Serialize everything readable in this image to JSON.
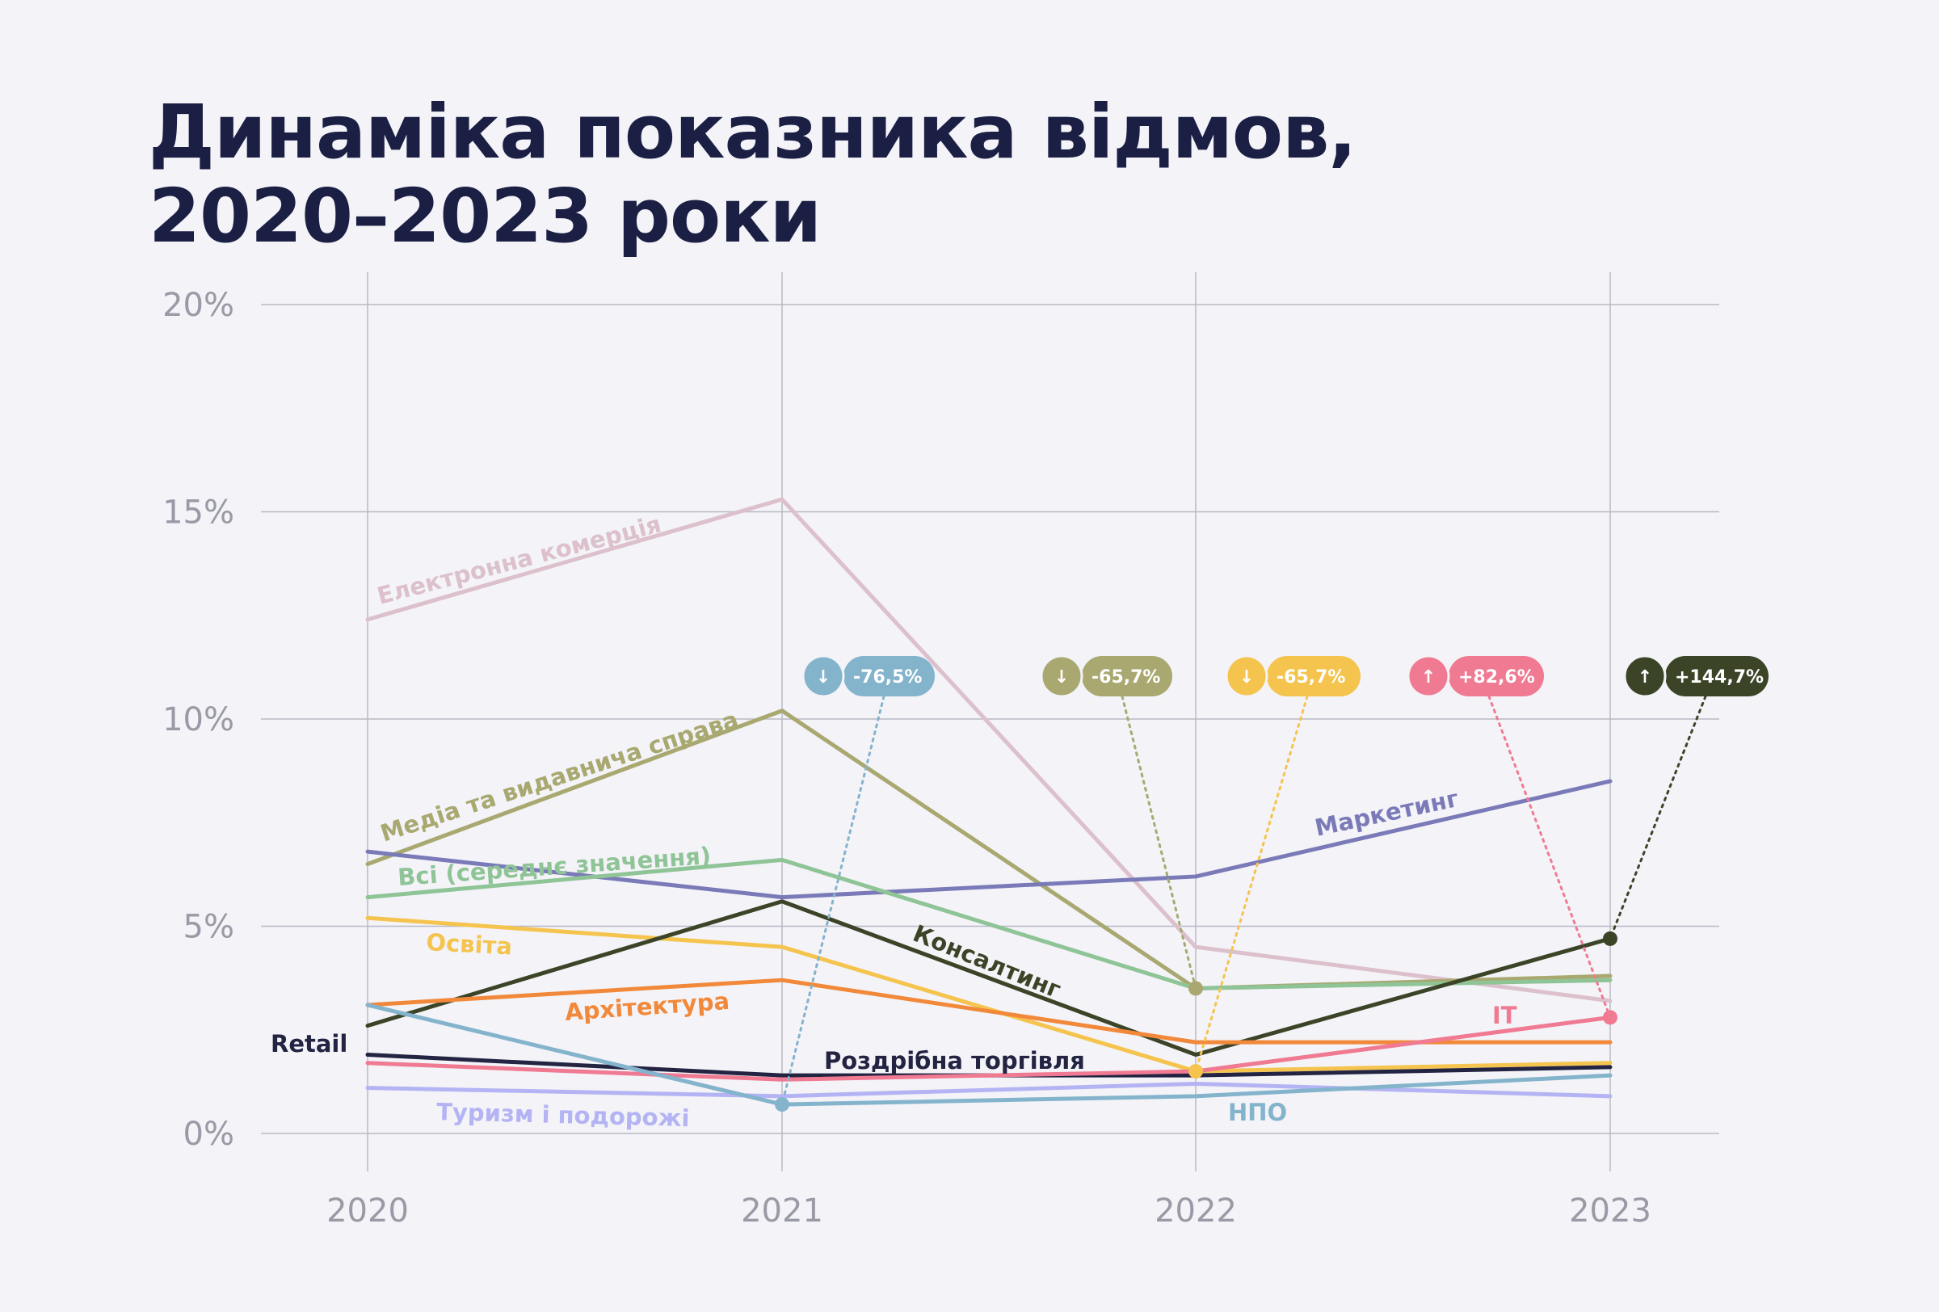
{
  "title": {
    "line1": "Динаміка показника відмов,",
    "line2": "2020–2023 роки"
  },
  "chart_data": {
    "type": "line",
    "title": "Динаміка показника відмов, 2020–2023 роки",
    "xlabel": "",
    "ylabel": "",
    "categories": [
      "2020",
      "2021",
      "2022",
      "2023"
    ],
    "y_ticks": [
      "0%",
      "5%",
      "10%",
      "15%",
      "20%"
    ],
    "ylim": [
      0,
      20
    ],
    "grid": true,
    "series": [
      {
        "name": "Електронна комерція",
        "color": "#dcc0cc",
        "values": [
          12.4,
          15.3,
          4.5,
          3.2
        ]
      },
      {
        "name": "Медіа та видавнича справа",
        "color": "#a8a870",
        "values": [
          6.5,
          10.2,
          3.5,
          3.8
        ]
      },
      {
        "name": "Маркетинг",
        "color": "#7a7ab8",
        "values": [
          6.8,
          5.7,
          6.2,
          8.5
        ]
      },
      {
        "name": "Всі (середнє значення)",
        "color": "#8fc497",
        "values": [
          5.7,
          6.6,
          3.5,
          3.7
        ]
      },
      {
        "name": "Освіта",
        "color": "#f5c44e",
        "values": [
          5.2,
          4.5,
          1.5,
          1.7
        ]
      },
      {
        "name": "Консалтинг",
        "color": "#3c4428",
        "values": [
          2.6,
          5.6,
          1.9,
          4.7
        ]
      },
      {
        "name": "Архітектура",
        "color": "#f2893a",
        "values": [
          3.1,
          3.7,
          2.2,
          2.2
        ]
      },
      {
        "name": "Retail",
        "color": "#232342",
        "values": [
          1.9,
          1.4,
          1.4,
          1.6
        ]
      },
      {
        "name": "IT",
        "color": "#f07a92",
        "values": [
          1.7,
          1.3,
          1.5,
          2.8
        ]
      },
      {
        "name": "Туризм і подорожі",
        "color": "#b4b4f4",
        "values": [
          1.1,
          0.9,
          1.2,
          0.9
        ]
      },
      {
        "name": "НПО",
        "color": "#84b3cc",
        "values": [
          3.1,
          0.7,
          0.9,
          1.4
        ]
      }
    ],
    "labels": [
      {
        "text": "Електронна комерція",
        "series": 0
      },
      {
        "text": "Медіа та видавнича справа",
        "series": 1
      },
      {
        "text": "Маркетинг",
        "series": 2
      },
      {
        "text": "Всі (середнє значення)",
        "series": 3
      },
      {
        "text": "Освіта",
        "series": 4
      },
      {
        "text": "Консалтинг",
        "series": 5
      },
      {
        "text": "Архітектура",
        "series": 6
      },
      {
        "text": "Retail",
        "series": 7
      },
      {
        "text": "Роздрібна торгівля",
        "series": 7
      },
      {
        "text": "IT",
        "series": 8
      },
      {
        "text": "Туризм і подорожі",
        "series": 9
      },
      {
        "text": "НПО",
        "series": 10
      }
    ],
    "annotations": [
      {
        "text": "-76,5%",
        "direction": "down",
        "series": 10,
        "point_index": 1,
        "color": "#84b3cc"
      },
      {
        "text": "-65,7%",
        "direction": "down",
        "series": 1,
        "point_index": 2,
        "color": "#a8a870"
      },
      {
        "text": "-65,7%",
        "direction": "down",
        "series": 4,
        "point_index": 2,
        "color": "#f5c44e"
      },
      {
        "text": "+82,6%",
        "direction": "up",
        "series": 8,
        "point_index": 3,
        "color": "#f07a92"
      },
      {
        "text": "+144,7%",
        "direction": "up",
        "series": 5,
        "point_index": 3,
        "color": "#3c4428"
      }
    ]
  }
}
